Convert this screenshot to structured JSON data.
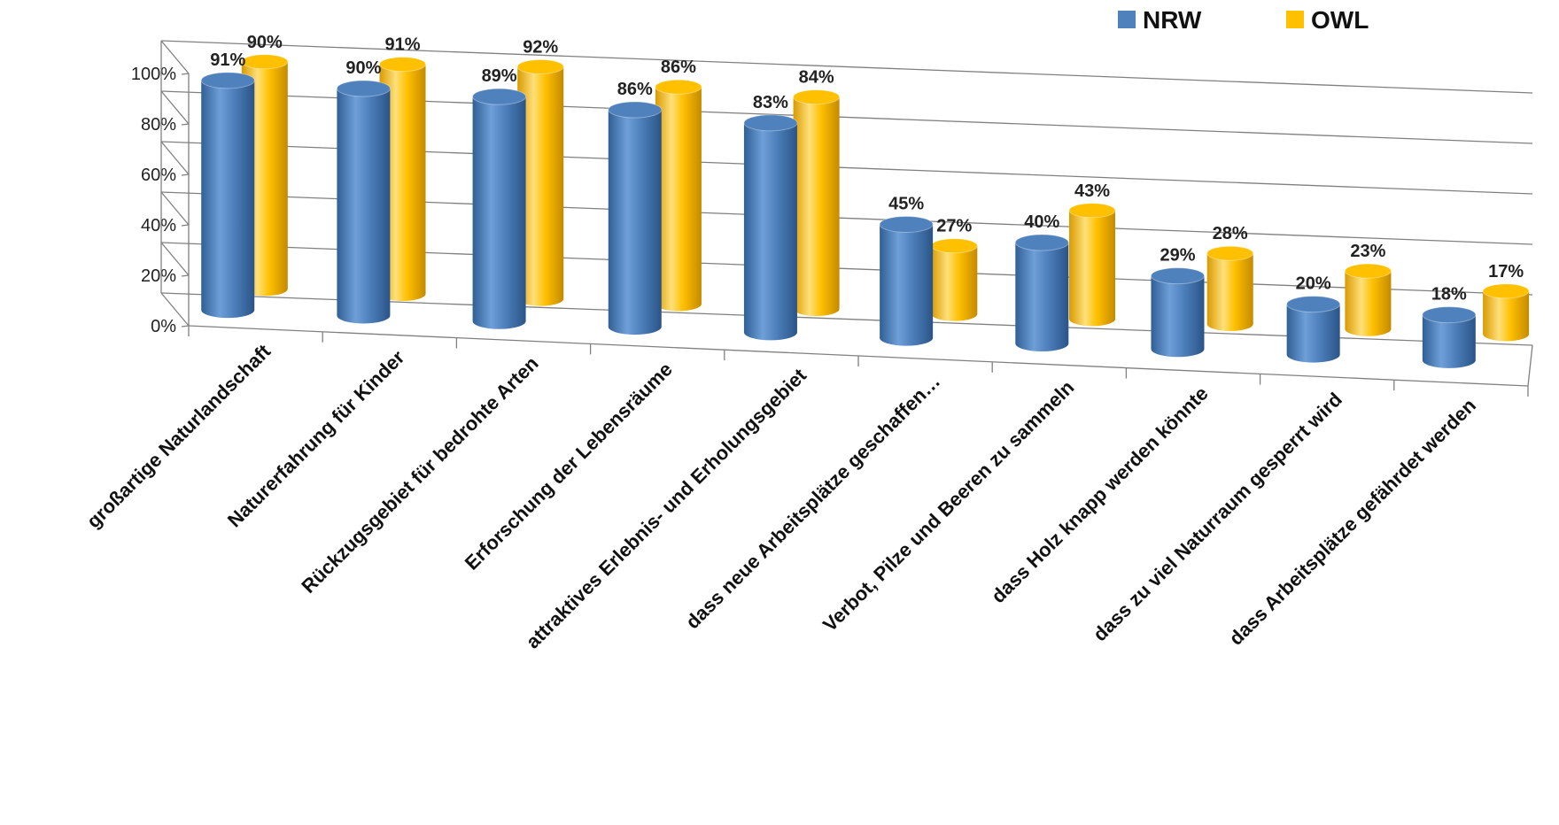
{
  "chart_data": {
    "type": "bar",
    "style": "3d-cylinder",
    "categories": [
      "großartige Naturlandschaft",
      "Naturerfahrung für Kinder",
      "Rückzugsgebiet für bedrohte Arten",
      "Erforschung der Lebensräume",
      "attraktives Erlebnis- und Erholungsgebiet",
      "dass neue Arbeitsplätze geschaffen…",
      "Verbot, Pilze und Beeren zu sammeln",
      "dass Holz knapp werden könnte",
      "dass zu viel Naturraum gesperrt wird",
      "dass Arbeitsplätze gefährdet werden"
    ],
    "series": [
      {
        "name": "NRW",
        "color": "#4f81bd",
        "values": [
          91,
          90,
          89,
          86,
          83,
          45,
          40,
          29,
          20,
          18
        ]
      },
      {
        "name": "OWL",
        "color": "#ffc000",
        "values": [
          90,
          91,
          92,
          86,
          84,
          27,
          43,
          28,
          23,
          17
        ]
      }
    ],
    "value_labels": {
      "NRW": [
        "91%",
        "90%",
        "89%",
        "86%",
        "83%",
        "45%",
        "40%",
        "29%",
        "20%",
        "18%"
      ],
      "OWL": [
        "90%",
        "91%",
        "92%",
        "86%",
        "84%",
        "27%",
        "43%",
        "28%",
        "23%",
        "17%"
      ]
    },
    "y_ticks": [
      "0%",
      "20%",
      "40%",
      "60%",
      "80%",
      "100%"
    ],
    "ylim": [
      0,
      100
    ],
    "grid": true,
    "legend": "top-right"
  }
}
